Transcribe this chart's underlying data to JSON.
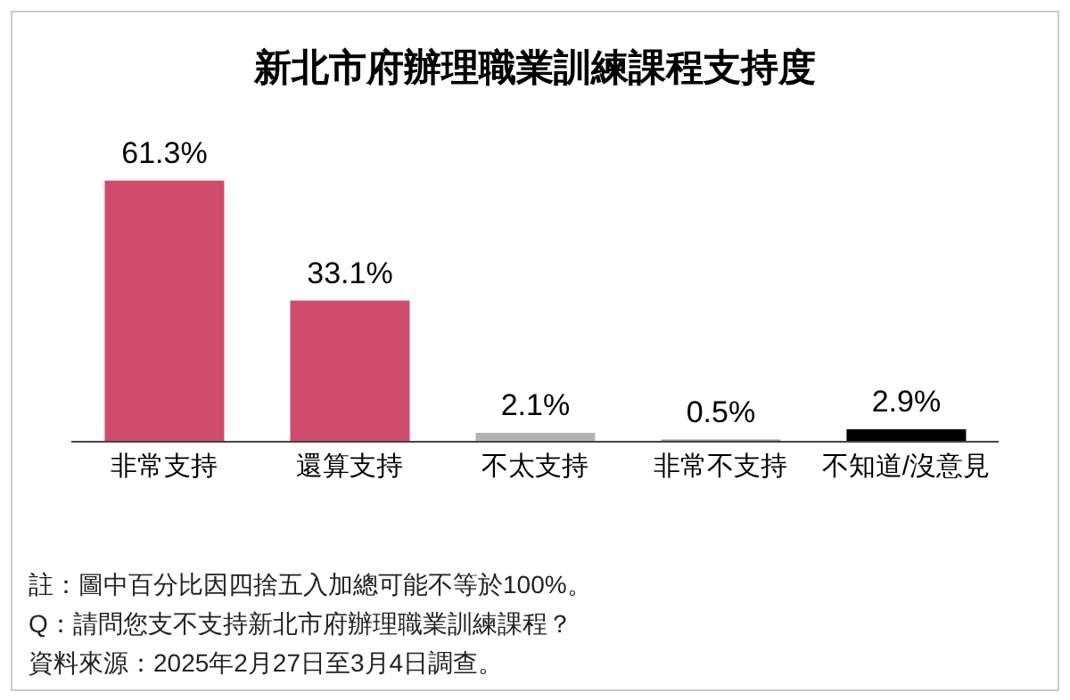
{
  "chart_data": {
    "type": "bar",
    "title": "新北市府辦理職業訓練課程支持度",
    "categories": [
      "非常支持",
      "還算支持",
      "不太支持",
      "非常不支持",
      "不知道/沒意見"
    ],
    "values": [
      61.3,
      33.1,
      2.1,
      0.5,
      2.9
    ],
    "colors": [
      "#cf4c6c",
      "#cf4c6c",
      "#b3b3b3",
      "#999999",
      "#000000"
    ],
    "data_labels": true,
    "value_labels": [
      "61.3%",
      "33.1%",
      "2.1%",
      "0.5%",
      "2.9%"
    ],
    "annotations": [
      "註：圖中百分比因四捨五入加總可能不等於100%。",
      "Q：請問您支不支持新北市府辦理職業訓練課程？",
      "資料來源：2025年2月27日至3月4日調查。"
    ]
  }
}
